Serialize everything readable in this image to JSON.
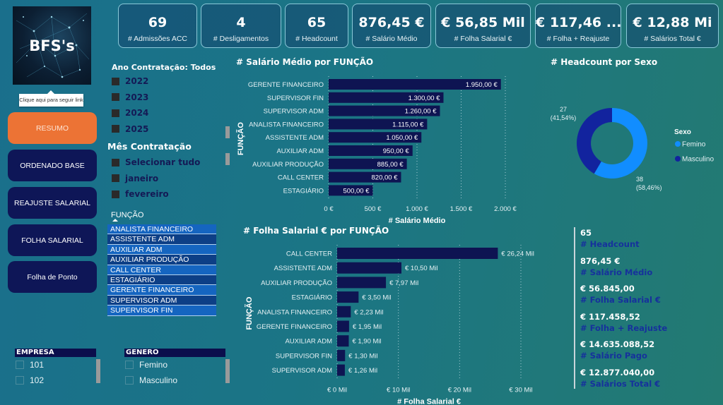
{
  "logo": {
    "text": "BFS's",
    "tooltip": "Clique aqui para seguir link"
  },
  "nav": [
    {
      "label": "RESUMO",
      "active": true
    },
    {
      "label": "ORDENADO BASE",
      "active": false
    },
    {
      "label": "REAJUSTE SALARIAL",
      "active": false
    },
    {
      "label": "FOLHA SALARIAL",
      "active": false
    },
    {
      "label": "Folha de Ponto",
      "active": false
    }
  ],
  "kpis": [
    {
      "value": "69",
      "label": "# Admissões ACC"
    },
    {
      "value": "4",
      "label": "# Desligamentos"
    },
    {
      "value": "65",
      "label": "# Headcount"
    },
    {
      "value": "876,45 €",
      "label": "# Salário Médio"
    },
    {
      "value": "€ 56,85 Mil",
      "label": "# Folha Salarial €"
    },
    {
      "value": "€ 117,46 ...",
      "label": "# Folha + Reajuste"
    },
    {
      "value": "€ 12,88 Mi",
      "label": "# Salários Total €"
    }
  ],
  "ano_slicer": {
    "title": "Ano Contratação: Todos",
    "items": [
      "2022",
      "2023",
      "2024",
      "2025"
    ]
  },
  "mes_slicer": {
    "title": "Mês Contratação",
    "items": [
      "Selecionar tudo",
      "janeiro",
      "fevereiro"
    ]
  },
  "funcao_slicer": {
    "title": "FUNÇÃO",
    "items": [
      "ANALISTA FINANCEIRO",
      "ASSISTENTE ADM",
      "AUXILIAR ADM",
      "AUXILIAR PRODUÇÃO",
      "CALL CENTER",
      "ESTAGIÁRIO",
      "GERENTE FINANCEIRO",
      "SUPERVISOR ADM",
      "SUPERVISOR FIN"
    ]
  },
  "empresa_slicer": {
    "title": "EMPRESA",
    "items": [
      "101",
      "102"
    ]
  },
  "genero_slicer": {
    "title": "GENERO",
    "items": [
      "Femino",
      "Masculino"
    ]
  },
  "multi_row_card": [
    {
      "value": "65",
      "label": "# Headcount"
    },
    {
      "value": "876,45 €",
      "label": "# Salário Médio"
    },
    {
      "value": "€ 56.845,00",
      "label": "# Folha Salarial €"
    },
    {
      "value": "€ 117.458,52",
      "label": "# Folha + Reajuste"
    },
    {
      "value": "€ 14.635.088,52",
      "label": "# Salário Pago"
    },
    {
      "value": "€ 12.877.040,00",
      "label": "# Salários Total €"
    }
  ],
  "colors": {
    "bar": "#0e1452",
    "femino": "#118dff",
    "masculino": "#12239e",
    "accent_active": "#ec7335",
    "nav": "#0e1657"
  },
  "chart_data": [
    {
      "type": "bar",
      "orientation": "horizontal",
      "title": "# Salário Médio por FUNÇÃO",
      "xlabel": "# Salário Médio",
      "ylabel": "FUNÇÃO",
      "categories": [
        "GERENTE FINANCEIRO",
        "SUPERVISOR FIN",
        "SUPERVISOR ADM",
        "ANALISTA FINANCEIRO",
        "ASSISTENTE ADM",
        "AUXILIAR ADM",
        "AUXILIAR PRODUÇÃO",
        "CALL CENTER",
        "ESTAGIÁRIO"
      ],
      "values": [
        1950,
        1300,
        1260,
        1115,
        1050,
        950,
        885,
        820,
        500
      ],
      "data_labels": [
        "1.950,00 €",
        "1.300,00 €",
        "1.260,00 €",
        "1.115,00 €",
        "1.050,00 €",
        "950,00 €",
        "885,00 €",
        "820,00 €",
        "500,00 €"
      ],
      "xlim": [
        0,
        2000
      ],
      "xticks": [
        0,
        500,
        1000,
        1500,
        2000
      ],
      "xtick_labels": [
        "0 €",
        "500 €",
        "1.000 €",
        "1.500 €",
        "2.000 €"
      ],
      "grid": true,
      "label_position": "inside-end"
    },
    {
      "type": "bar",
      "orientation": "horizontal",
      "title": "# Folha Salarial € por FUNÇÃO",
      "xlabel": "# Folha Salarial €",
      "ylabel": "FUNÇÃO",
      "categories": [
        "CALL CENTER",
        "ASSISTENTE ADM",
        "AUXILIAR PRODUÇÃO",
        "ESTAGIÁRIO",
        "ANALISTA FINANCEIRO",
        "GERENTE FINANCEIRO",
        "AUXILIAR ADM",
        "SUPERVISOR FIN",
        "SUPERVISOR ADM"
      ],
      "values": [
        26240,
        10500,
        7970,
        3500,
        2230,
        1950,
        1900,
        1300,
        1260
      ],
      "data_labels": [
        "€ 26,24 Mil",
        "€ 10,50 Mil",
        "€ 7,97 Mil",
        "€ 3,50 Mil",
        "€ 2,23 Mil",
        "€ 1,95 Mil",
        "€ 1,90 Mil",
        "€ 1,30 Mil",
        "€ 1,26 Mil"
      ],
      "xlim": [
        0,
        30000
      ],
      "xticks": [
        0,
        10000,
        20000,
        30000
      ],
      "xtick_labels": [
        "€ 0 Mil",
        "€ 10 Mil",
        "€ 20 Mil",
        "€ 30 Mil"
      ],
      "grid": true,
      "label_position": "outside-end"
    },
    {
      "type": "pie",
      "variant": "donut",
      "title": "# Headcount por Sexo",
      "legend_title": "Sexo",
      "legend_position": "right",
      "categories": [
        "Femino",
        "Masculino"
      ],
      "values": [
        38,
        27
      ],
      "data_labels": [
        [
          "38",
          "(58,46%)"
        ],
        [
          "27",
          "(41,54%)"
        ]
      ]
    }
  ]
}
